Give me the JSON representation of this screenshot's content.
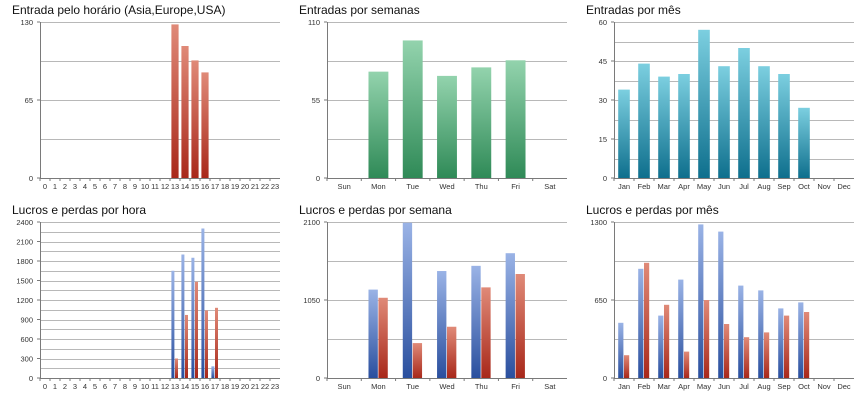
{
  "colors": {
    "red_top": "#e08a78",
    "red_bottom": "#a8281a",
    "green_top": "#93d3ad",
    "green_bottom": "#2f8a57",
    "teal_top": "#7ccfe0",
    "teal_bottom": "#0e6f8d",
    "blue_top": "#9ab3e6",
    "blue_bottom": "#2a4f9e",
    "grid": "#b8b8b8",
    "axis": "#7a7a7a"
  },
  "chart_data": [
    {
      "type": "bar",
      "title": "Entrada pelo horário (Asia,Europe,USA)",
      "categories": [
        "0",
        "1",
        "2",
        "3",
        "4",
        "5",
        "6",
        "7",
        "8",
        "9",
        "10",
        "11",
        "12",
        "13",
        "14",
        "15",
        "16",
        "17",
        "18",
        "19",
        "20",
        "21",
        "22",
        "23"
      ],
      "series": [
        {
          "values": [
            0,
            0,
            0,
            0,
            0,
            0,
            0,
            0,
            0,
            0,
            0,
            0,
            0,
            128,
            110,
            98,
            88,
            0,
            0,
            0,
            0,
            0,
            0,
            0
          ],
          "color": "red"
        }
      ],
      "ylim": [
        0,
        130
      ],
      "yticks": [
        0,
        65,
        130
      ],
      "grid": true
    },
    {
      "type": "bar",
      "title": "Entradas por semanas",
      "categories": [
        "Sun",
        "Mon",
        "Tue",
        "Wed",
        "Thu",
        "Fri",
        "Sat"
      ],
      "series": [
        {
          "values": [
            0,
            75,
            97,
            72,
            78,
            83,
            0
          ],
          "color": "green"
        }
      ],
      "ylim": [
        0,
        110
      ],
      "yticks": [
        0,
        55,
        110
      ],
      "grid": true
    },
    {
      "type": "bar",
      "title": "Entradas por mês",
      "categories": [
        "Jan",
        "Feb",
        "Mar",
        "Apr",
        "May",
        "Jun",
        "Jul",
        "Aug",
        "Sep",
        "Oct",
        "Nov",
        "Dec"
      ],
      "series": [
        {
          "values": [
            34,
            44,
            39,
            40,
            57,
            43,
            50,
            43,
            40,
            27,
            0,
            0
          ],
          "color": "teal"
        }
      ],
      "ylim": [
        0,
        60
      ],
      "yticks": [
        0,
        15,
        30,
        45,
        60
      ],
      "grid": true
    },
    {
      "type": "bar",
      "title": "Lucros e perdas por hora",
      "categories": [
        "0",
        "1",
        "2",
        "3",
        "4",
        "5",
        "6",
        "7",
        "8",
        "9",
        "10",
        "11",
        "12",
        "13",
        "14",
        "15",
        "16",
        "17",
        "18",
        "19",
        "20",
        "21",
        "22",
        "23"
      ],
      "series": [
        {
          "values": [
            0,
            0,
            0,
            0,
            0,
            0,
            0,
            0,
            0,
            0,
            0,
            0,
            0,
            1650,
            1900,
            1850,
            2300,
            180,
            0,
            0,
            0,
            0,
            0,
            0
          ],
          "color": "blue"
        },
        {
          "values": [
            0,
            0,
            0,
            0,
            0,
            0,
            0,
            0,
            0,
            0,
            0,
            0,
            0,
            300,
            970,
            1480,
            1040,
            1080,
            0,
            0,
            0,
            0,
            0,
            0
          ],
          "color": "red"
        }
      ],
      "ylim": [
        0,
        2400
      ],
      "yticks": [
        0,
        300,
        600,
        900,
        1200,
        1500,
        1800,
        2100,
        2400
      ],
      "grid": true
    },
    {
      "type": "bar",
      "title": "Lucros e perdas por semana",
      "categories": [
        "Sun",
        "Mon",
        "Tue",
        "Wed",
        "Thu",
        "Fri",
        "Sat"
      ],
      "series": [
        {
          "values": [
            0,
            1190,
            2090,
            1440,
            1510,
            1680,
            0
          ],
          "color": "blue"
        },
        {
          "values": [
            0,
            1080,
            470,
            690,
            1220,
            1400,
            0
          ],
          "color": "red"
        }
      ],
      "ylim": [
        0,
        2100
      ],
      "yticks": [
        0,
        1050,
        2100
      ],
      "grid": true
    },
    {
      "type": "bar",
      "title": "Lucros e perdas por mês",
      "categories": [
        "Jan",
        "Feb",
        "Mar",
        "Apr",
        "May",
        "Jun",
        "Jul",
        "Aug",
        "Sep",
        "Oct",
        "Nov",
        "Dec"
      ],
      "series": [
        {
          "values": [
            460,
            910,
            520,
            820,
            1280,
            1220,
            770,
            730,
            580,
            630,
            0,
            0
          ],
          "color": "blue"
        },
        {
          "values": [
            190,
            960,
            610,
            220,
            650,
            450,
            340,
            380,
            520,
            550,
            0,
            0
          ],
          "color": "red"
        }
      ],
      "ylim": [
        0,
        1300
      ],
      "yticks": [
        0,
        650,
        1300
      ],
      "grid": true
    }
  ]
}
